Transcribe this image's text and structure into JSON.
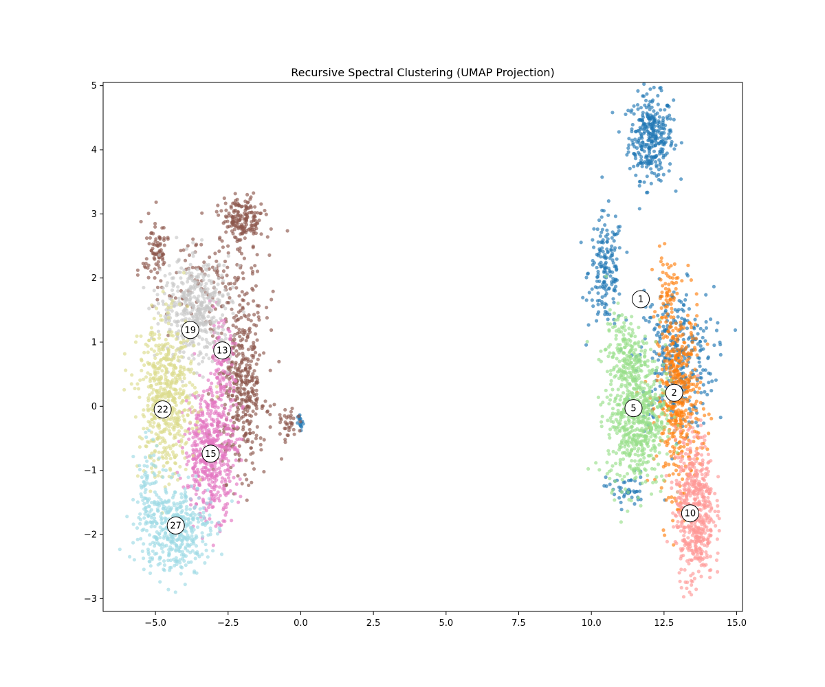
{
  "chart_data": {
    "type": "scatter",
    "title": "Recursive Spectral Clustering (UMAP Projection)",
    "xlabel": "",
    "ylabel": "",
    "xlim": [
      -6.8,
      15.2
    ],
    "ylim": [
      -3.2,
      5.05
    ],
    "x_ticks": [
      -5.0,
      -2.5,
      0.0,
      2.5,
      5.0,
      7.5,
      10.0,
      12.5,
      15.0
    ],
    "x_tick_labels": [
      "−5.0",
      "−2.5",
      "0.0",
      "2.5",
      "5.0",
      "7.5",
      "10.0",
      "12.5",
      "15.0"
    ],
    "y_ticks": [
      -3,
      -2,
      -1,
      0,
      1,
      2,
      3,
      4,
      5
    ],
    "y_tick_labels": [
      "−3",
      "−2",
      "−1",
      "0",
      "1",
      "2",
      "3",
      "4",
      "5"
    ],
    "grid": false,
    "legend": "none",
    "point_alpha": 0.65,
    "clusters": [
      {
        "label": "1",
        "label_pos": [
          11.7,
          1.67
        ],
        "color": "#1f77b4",
        "blobs": [
          {
            "cx": 12.05,
            "cy": 4.2,
            "sx": 0.38,
            "sy": 0.33,
            "n": 320
          },
          {
            "cx": 10.5,
            "cy": 2.1,
            "sx": 0.3,
            "sy": 0.45,
            "n": 170
          },
          {
            "cx": 12.9,
            "cy": 0.75,
            "sx": 0.65,
            "sy": 0.55,
            "n": 330
          },
          {
            "cx": 11.2,
            "cy": -1.3,
            "sx": 0.35,
            "sy": 0.14,
            "n": 45
          },
          {
            "cx": 0.0,
            "cy": -0.27,
            "sx": 0.05,
            "sy": 0.07,
            "n": 15
          }
        ]
      },
      {
        "label": "2",
        "label_pos": [
          12.85,
          0.21
        ],
        "color": "#ff7f0e",
        "blobs": [
          {
            "cx": 13.0,
            "cy": 0.1,
            "sx": 0.38,
            "sy": 0.72,
            "n": 480
          },
          {
            "cx": 12.6,
            "cy": 1.75,
            "sx": 0.17,
            "sy": 0.3,
            "n": 60
          }
        ]
      },
      {
        "label": "5",
        "label_pos": [
          11.45,
          -0.03
        ],
        "color": "#98df8a",
        "blobs": [
          {
            "cx": 11.55,
            "cy": -0.15,
            "sx": 0.5,
            "sy": 0.55,
            "n": 640
          },
          {
            "cx": 11.1,
            "cy": 0.85,
            "sx": 0.3,
            "sy": 0.33,
            "n": 140
          }
        ]
      },
      {
        "label": "10",
        "label_pos": [
          13.4,
          -1.67
        ],
        "color": "#ff9896",
        "blobs": [
          {
            "cx": 13.55,
            "cy": -1.6,
            "sx": 0.33,
            "sy": 0.58,
            "n": 560
          }
        ]
      },
      {
        "label": "13",
        "label_pos": [
          -2.7,
          0.87
        ],
        "color": "#8c564b",
        "blobs": [
          {
            "cx": -2.0,
            "cy": 0.3,
            "sx": 0.42,
            "sy": 0.65,
            "n": 400
          },
          {
            "cx": -2.0,
            "cy": 2.9,
            "sx": 0.36,
            "sy": 0.18,
            "n": 170
          },
          {
            "cx": -5.0,
            "cy": 2.4,
            "sx": 0.22,
            "sy": 0.3,
            "n": 80
          },
          {
            "cx": -3.0,
            "cy": 1.9,
            "sx": 0.8,
            "sy": 0.45,
            "n": 140
          },
          {
            "cx": -0.4,
            "cy": -0.3,
            "sx": 0.15,
            "sy": 0.12,
            "n": 35
          }
        ]
      },
      {
        "label": "15",
        "label_pos": [
          -3.1,
          -0.74
        ],
        "color": "#e377c2",
        "blobs": [
          {
            "cx": -3.1,
            "cy": -0.7,
            "sx": 0.45,
            "sy": 0.5,
            "n": 520
          },
          {
            "cx": -2.75,
            "cy": 0.5,
            "sx": 0.25,
            "sy": 0.4,
            "n": 110
          }
        ]
      },
      {
        "label": "19",
        "label_pos": [
          -3.8,
          1.19
        ],
        "color": "#c7c7c7",
        "blobs": [
          {
            "cx": -3.6,
            "cy": 1.5,
            "sx": 0.6,
            "sy": 0.4,
            "n": 460
          }
        ]
      },
      {
        "label": "22",
        "label_pos": [
          -4.75,
          -0.05
        ],
        "color": "#dbdb8d",
        "blobs": [
          {
            "cx": -4.6,
            "cy": 0.1,
            "sx": 0.48,
            "sy": 0.6,
            "n": 560
          }
        ]
      },
      {
        "label": "27",
        "label_pos": [
          -4.3,
          -1.86
        ],
        "color": "#9edae5",
        "blobs": [
          {
            "cx": -4.35,
            "cy": -1.9,
            "sx": 0.6,
            "sy": 0.35,
            "n": 450
          },
          {
            "cx": -5.3,
            "cy": -1.2,
            "sx": 0.18,
            "sy": 0.35,
            "n": 60
          }
        ]
      }
    ]
  }
}
